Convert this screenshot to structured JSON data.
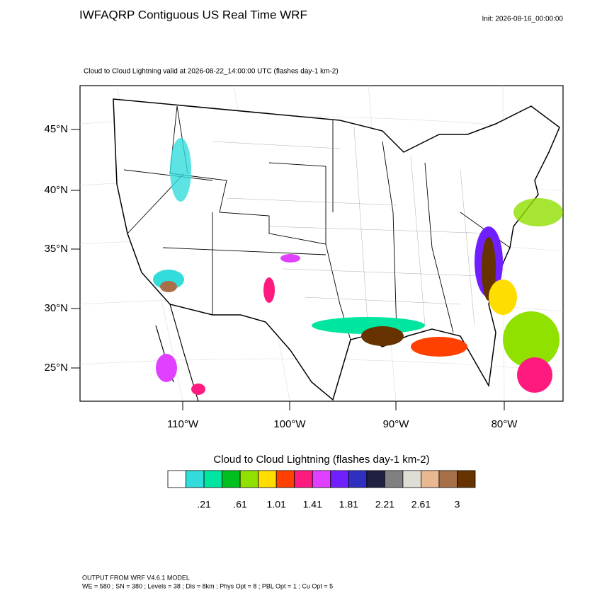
{
  "header": {
    "title": "IWFAQRP Contiguous US Real Time WRF",
    "init": "Init: 2026-08-16_00:00:00",
    "subtitle": "Cloud to Cloud Lightning valid at 2026-08-22_14:00:00 UTC   (flashes day-1 km-2)"
  },
  "map": {
    "lat_labels": [
      "45°N",
      "40°N",
      "35°N",
      "30°N",
      "25°N"
    ],
    "lon_labels": [
      "110°W",
      "100°W",
      "90°W",
      "80°W"
    ]
  },
  "colorbar": {
    "title": "Cloud to Cloud Lightning  (flashes day-1 km-2)",
    "labels": [
      ".21",
      ".61",
      "1.01",
      "1.41",
      "1.81",
      "2.21",
      "2.61",
      "3"
    ],
    "colors": [
      "#ffffff",
      "#33dcdc",
      "#00e6a0",
      "#00c020",
      "#90e000",
      "#ffdd00",
      "#ff4000",
      "#ff1a80",
      "#e040ff",
      "#7020ff",
      "#3030c0",
      "#202040",
      "#808080",
      "#e0ddd5",
      "#e8b890",
      "#a87048",
      "#663300"
    ]
  },
  "footer": {
    "line1": "OUTPUT FROM WRF V4.6.1 MODEL",
    "line2": "WE = 580 ; SN = 380 ; Levels = 38 ; Dis = 8km ; Phys Opt = 8 ; PBL Opt = 1 ; Cu Opt = 5"
  }
}
